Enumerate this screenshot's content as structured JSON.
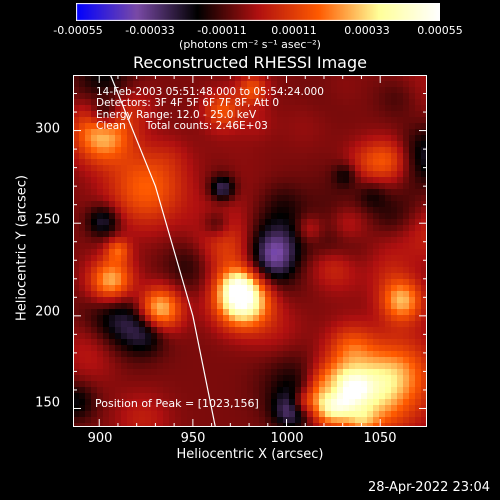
{
  "colorbar": {
    "ticks": [
      "-0.00055",
      "-0.00033",
      "-0.00011",
      "0.00011",
      "0.00033",
      "0.00055"
    ],
    "min": -0.00055,
    "max": 0.00055,
    "unit_label": "(photons cm⁻² s⁻¹ asec⁻²)"
  },
  "chart_data": {
    "type": "heatmap",
    "title": "Reconstructed RHESSI Image",
    "xlabel": "Heliocentric X (arcsec)",
    "ylabel": "Heliocentric Y (arcsec)",
    "xlim": [
      886,
      1075
    ],
    "ylim": [
      140,
      330
    ],
    "xticks": [
      900,
      950,
      1000,
      1050
    ],
    "yticks": [
      150,
      200,
      250,
      300
    ],
    "annotations": [
      "14-Feb-2003 05:51:48.000 to 05:54:24.000",
      "Detectors: 3F 4F 5F 6F 7F 8F, Att 0",
      "Energy Range: 12.0 - 25.0 keV",
      "Clean      Total counts: 2.46E+03"
    ],
    "peak_label": "Position of Peak = [1023,156]",
    "peak": [
      1023,
      156
    ],
    "colormap_colors": [
      "#0000ff",
      "#7a4aa6",
      "#000000",
      "#b01010",
      "#ff5a00",
      "#ffff99",
      "#ffffff"
    ],
    "limb_arc": [
      [
        906,
        330
      ],
      [
        930,
        270
      ],
      [
        950,
        200
      ],
      [
        962,
        140
      ]
    ]
  },
  "footer": {
    "timestamp": "28-Apr-2022 23:04"
  }
}
